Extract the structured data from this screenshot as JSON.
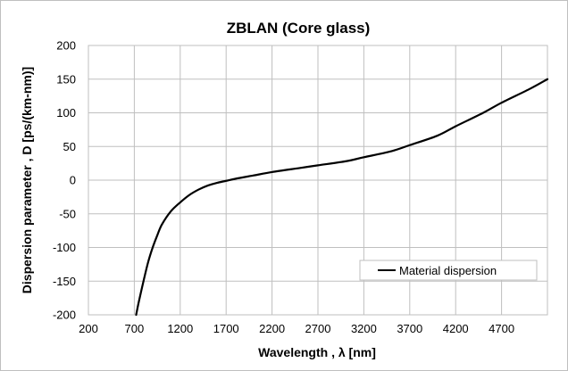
{
  "chart_data": {
    "type": "line",
    "title": "ZBLAN (Core glass)",
    "xlabel": "Wavelength , λ [nm]",
    "ylabel": "Dispersion parameter , D [ps/(km-nm)]",
    "xlim": [
      200,
      5200
    ],
    "ylim": [
      -200,
      200
    ],
    "xticks": [
      200,
      700,
      1200,
      1700,
      2200,
      2700,
      3200,
      3700,
      4200,
      4700
    ],
    "xtick_labels": [
      "200",
      "700",
      "1200",
      "1700",
      "2200",
      "2700",
      "3200",
      "3700",
      "4200",
      "4700"
    ],
    "yticks": [
      -200,
      -150,
      -100,
      -50,
      0,
      50,
      100,
      150,
      200
    ],
    "ytick_labels": [
      "-200",
      "-150",
      "-100",
      "-50",
      "0",
      "50",
      "100",
      "150",
      "200"
    ],
    "grid": true,
    "legend_position": "bottom-right",
    "series": [
      {
        "name": "Material dispersion",
        "color": "#000000",
        "x": [
          720,
          750,
          800,
          850,
          900,
          950,
          1000,
          1100,
          1200,
          1300,
          1400,
          1500,
          1600,
          1700,
          1800,
          2000,
          2200,
          2500,
          2700,
          3000,
          3200,
          3500,
          3700,
          4000,
          4200,
          4500,
          4700,
          5000,
          5200
        ],
        "y": [
          -200,
          -180,
          -150,
          -122,
          -100,
          -82,
          -66,
          -46,
          -33,
          -22,
          -14,
          -8,
          -4,
          -1,
          2,
          7,
          12,
          18,
          22,
          28,
          34,
          43,
          52,
          66,
          80,
          100,
          115,
          135,
          150
        ]
      }
    ]
  }
}
